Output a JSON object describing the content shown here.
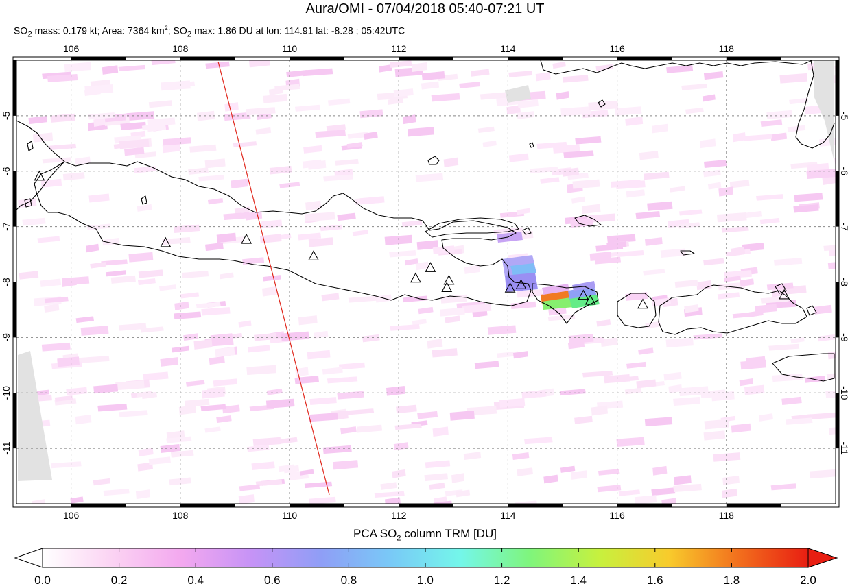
{
  "header": {
    "title": "Aura/OMI - 07/04/2018 05:40-07:21 UT",
    "subtitle_parts": [
      "SO",
      "2",
      " mass: 0.179 kt; Area: 7364 km",
      "2",
      "; SO",
      "2",
      " max: 1.86 DU at lon: 114.91 lat: -8.28 ; 05:42UTC"
    ]
  },
  "map": {
    "lon_range": [
      105.0,
      120.0
    ],
    "lat_range": [
      -12.0,
      -4.0
    ],
    "lon_ticks": [
      "106",
      "108",
      "110",
      "112",
      "114",
      "116",
      "118"
    ],
    "lat_ticks": [
      "-5",
      "-6",
      "-7",
      "-8",
      "-9",
      "-10",
      "-11"
    ],
    "gridlines": true,
    "land_outline_color": "#000000",
    "swath_edge_color": "#e0261b",
    "volcano_marker": "triangle-outline",
    "volcanoes": [
      {
        "lon": 105.42,
        "lat": -6.1
      },
      {
        "lon": 107.73,
        "lat": -7.3
      },
      {
        "lon": 109.21,
        "lat": -7.24
      },
      {
        "lon": 110.44,
        "lat": -7.54
      },
      {
        "lon": 112.31,
        "lat": -7.94
      },
      {
        "lon": 112.58,
        "lat": -7.75
      },
      {
        "lon": 112.92,
        "lat": -7.98
      },
      {
        "lon": 112.88,
        "lat": -8.11
      },
      {
        "lon": 114.04,
        "lat": -8.12
      },
      {
        "lon": 114.24,
        "lat": -8.06
      },
      {
        "lon": 115.38,
        "lat": -8.25
      },
      {
        "lon": 115.51,
        "lat": -8.34
      },
      {
        "lon": 116.47,
        "lat": -8.41
      },
      {
        "lon": 119.06,
        "lat": -8.24
      }
    ],
    "so2_hotspots": [
      {
        "lon": 114.91,
        "lat": -8.28,
        "du": 1.86
      },
      {
        "lon": 115.1,
        "lat": -8.42,
        "du": 1.4
      },
      {
        "lon": 115.5,
        "lat": -8.4,
        "du": 1.3
      },
      {
        "lon": 114.4,
        "lat": -7.72,
        "du": 0.9
      },
      {
        "lon": 114.2,
        "lat": -7.95,
        "du": 0.75
      }
    ]
  },
  "colorbar": {
    "label_parts": [
      "PCA SO",
      "2",
      " column TRM [DU]"
    ],
    "range": [
      0.0,
      2.0
    ],
    "ticks": [
      "0.0",
      "0.2",
      "0.4",
      "0.6",
      "0.8",
      "1.0",
      "1.2",
      "1.4",
      "1.6",
      "1.8",
      "2.0"
    ],
    "colors": [
      "#ffffff",
      "#fbd3f3",
      "#f3a8ef",
      "#c693f6",
      "#8f9ef6",
      "#79c9f7",
      "#74f6ea",
      "#7ff57c",
      "#c7f13e",
      "#f8cb2c",
      "#f26f1d",
      "#e81e12"
    ]
  }
}
